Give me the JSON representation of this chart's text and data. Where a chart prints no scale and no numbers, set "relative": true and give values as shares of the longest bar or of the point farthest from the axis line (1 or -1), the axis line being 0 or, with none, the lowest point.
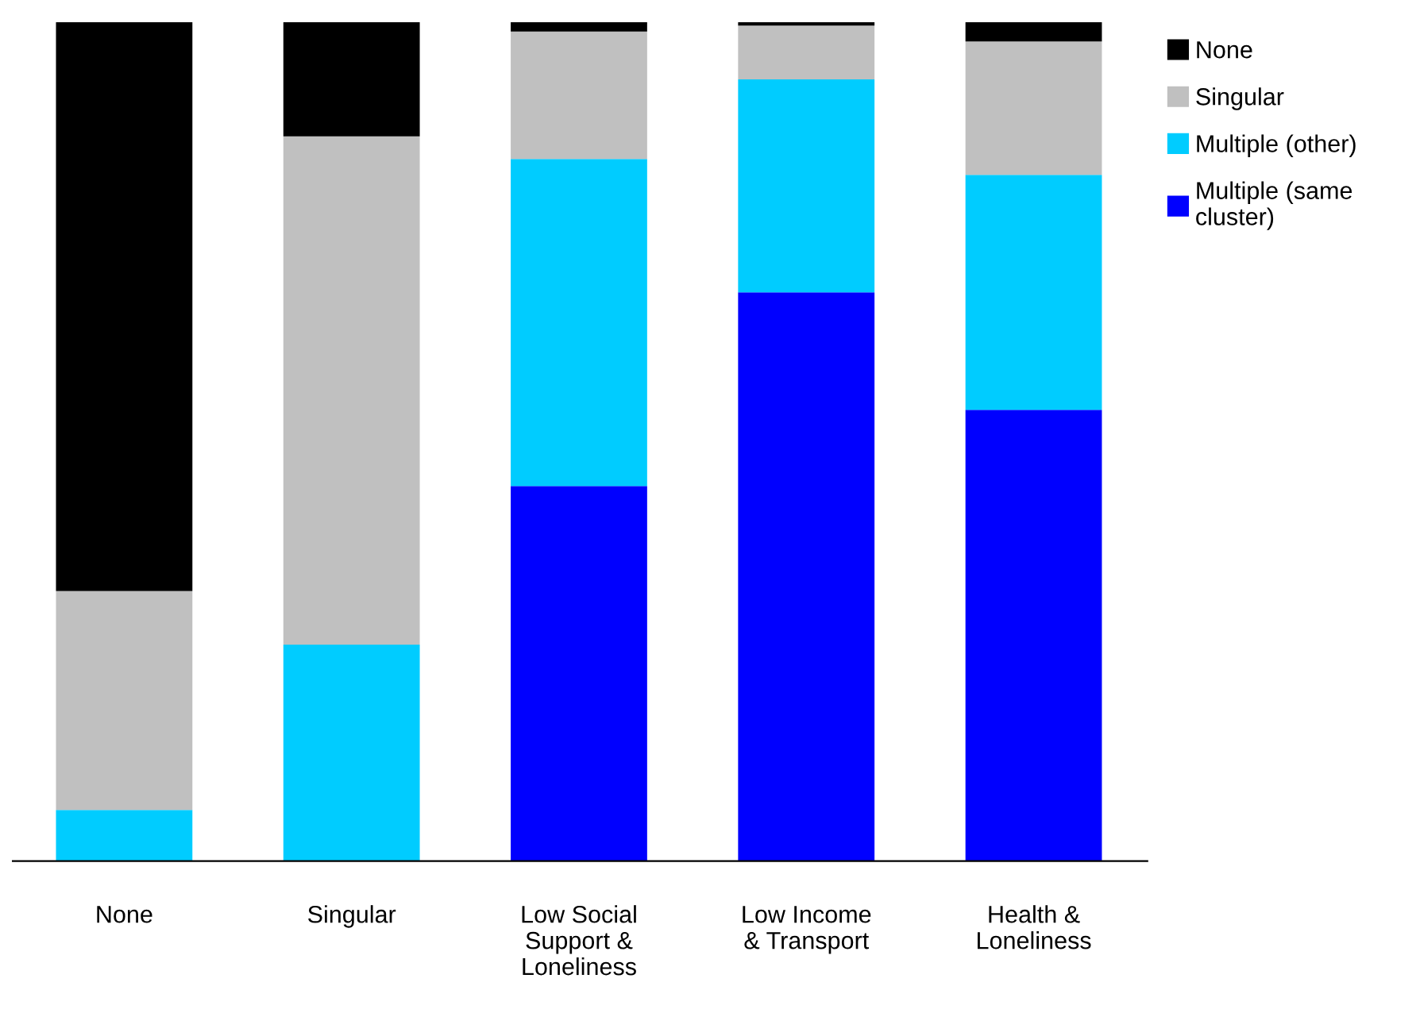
{
  "chart_data": {
    "type": "bar",
    "stacked": true,
    "relative": true,
    "grid": false,
    "legend": "top right",
    "categories": [
      "None",
      "Singular",
      "Low Social\nSupport &\nLoneliness",
      "Low Income\n& Transport",
      "Health &\nLoneliness"
    ],
    "series": [
      {
        "name": "Multiple (same\ncluster)",
        "color": "#0000ff",
        "values": [
          0,
          0,
          0.447,
          0.678,
          0.538
        ]
      },
      {
        "name": "Multiple (other)",
        "color": "#00ccff",
        "values": [
          0.061,
          0.258,
          0.39,
          0.254,
          0.28
        ]
      },
      {
        "name": "Singular",
        "color": "#c0c0c0",
        "values": [
          0.261,
          0.606,
          0.152,
          0.064,
          0.159
        ]
      },
      {
        "name": "None",
        "color": "#000000",
        "values": [
          0.678,
          0.136,
          0.011,
          0.004,
          0.023
        ]
      }
    ]
  }
}
